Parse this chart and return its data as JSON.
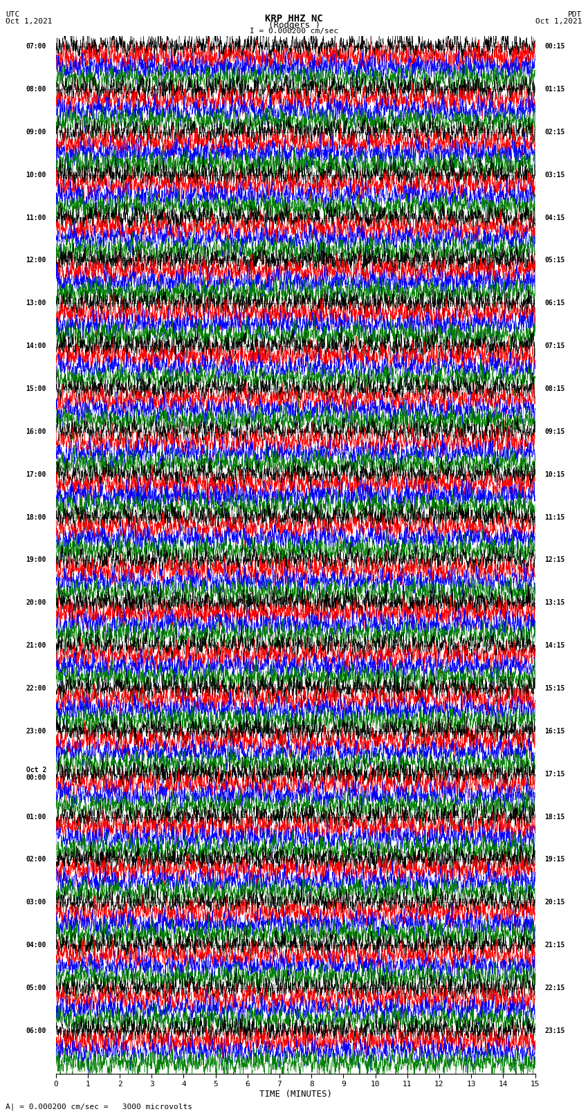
{
  "title_line1": "KRP HHZ NC",
  "title_line2": "(Rodgers )",
  "scale_label": "I = 0.000200 cm/sec",
  "left_date_label": "UTC\nOct 1,2021",
  "right_date_label": "PDT\nOct 1,2021",
  "bottom_label": "TIME (MINUTES)",
  "bottom_note": "A| = 0.000200 cm/sec =   3000 microvolts",
  "x_ticks": [
    0,
    1,
    2,
    3,
    4,
    5,
    6,
    7,
    8,
    9,
    10,
    11,
    12,
    13,
    14,
    15
  ],
  "left_time_labels": [
    "07:00",
    "08:00",
    "09:00",
    "10:00",
    "11:00",
    "12:00",
    "13:00",
    "14:00",
    "15:00",
    "16:00",
    "17:00",
    "18:00",
    "19:00",
    "20:00",
    "21:00",
    "22:00",
    "23:00",
    "Oct 2\n00:00",
    "01:00",
    "02:00",
    "03:00",
    "04:00",
    "05:00",
    "06:00"
  ],
  "right_time_labels": [
    "00:15",
    "01:15",
    "02:15",
    "03:15",
    "04:15",
    "05:15",
    "06:15",
    "07:15",
    "08:15",
    "09:15",
    "10:15",
    "11:15",
    "12:15",
    "13:15",
    "14:15",
    "15:15",
    "16:15",
    "17:15",
    "18:15",
    "19:15",
    "20:15",
    "21:15",
    "22:15",
    "23:15"
  ],
  "trace_colors_cycle": [
    "black",
    "red",
    "blue",
    "green"
  ],
  "n_traces": 96,
  "samples_per_trace": 3000,
  "amplitude_scale": 0.55,
  "background_color": "white",
  "fig_width": 8.5,
  "fig_height": 16.13
}
